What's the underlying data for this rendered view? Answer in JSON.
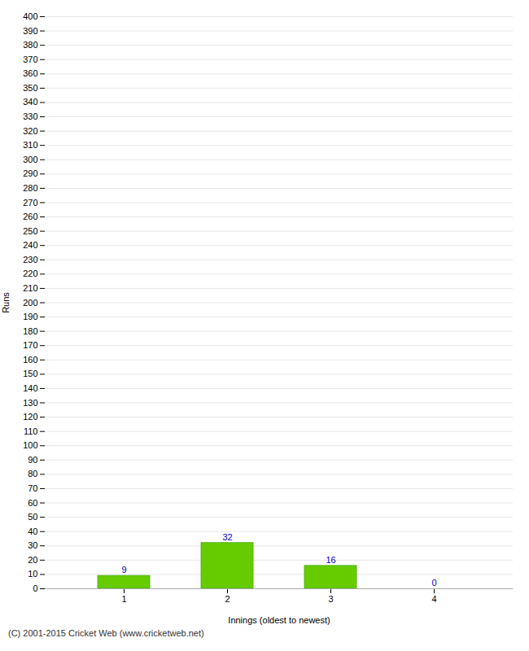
{
  "chart_data": {
    "type": "bar",
    "categories": [
      1,
      2,
      3,
      4
    ],
    "values": [
      9,
      32,
      16,
      0
    ],
    "color": "#66cc00",
    "xlabel": "Innings (oldest to newest)",
    "ylabel": "Runs",
    "caption": "(C) 2001-2015 Cricket Web (www.cricketweb.net)",
    "ylim": [
      0,
      400
    ],
    "yticks": [
      0,
      10,
      20,
      30,
      40,
      50,
      60,
      70,
      80,
      90,
      100,
      110,
      120,
      130,
      140,
      150,
      160,
      170,
      180,
      190,
      200,
      210,
      220,
      230,
      240,
      250,
      260,
      270,
      280,
      290,
      300,
      310,
      320,
      330,
      340,
      350,
      360,
      370,
      380,
      390,
      400
    ],
    "grid": true,
    "data_labels": true
  }
}
